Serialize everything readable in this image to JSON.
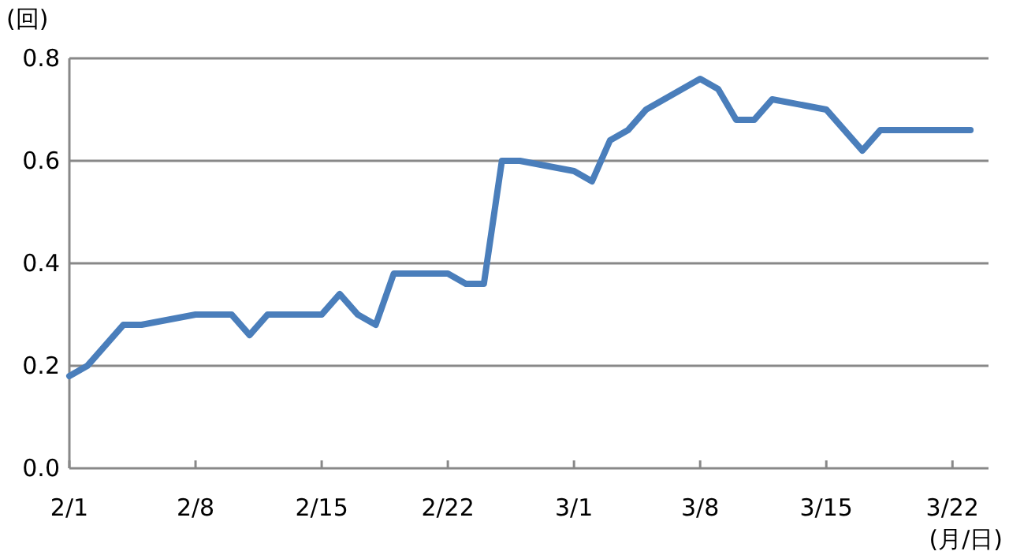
{
  "chart_data": {
    "type": "line",
    "ylabel": "(回)",
    "xlabel": "(月/日)",
    "color": "#4a7ebb",
    "grid": "y",
    "marker": "none",
    "line_style": "solid",
    "x": [
      "--02-01",
      "--02-02",
      "--02-03",
      "--02-04",
      "--02-05",
      "--02-08",
      "--02-10",
      "--02-11",
      "--02-12",
      "--02-15",
      "--02-16",
      "--02-17",
      "--02-18",
      "--02-19",
      "--02-22",
      "--02-23",
      "--02-24",
      "--02-25",
      "--02-26",
      "--03-01",
      "--03-02",
      "--03-03",
      "--03-04",
      "--03-05",
      "--03-08",
      "--03-09",
      "--03-10",
      "--03-11",
      "--03-12",
      "--03-15",
      "--03-17",
      "--03-18",
      "--03-23"
    ],
    "values": [
      0.18,
      0.2,
      0.24,
      0.28,
      0.28,
      0.3,
      0.3,
      0.26,
      0.3,
      0.3,
      0.34,
      0.3,
      0.28,
      0.38,
      0.38,
      0.36,
      0.36,
      0.6,
      0.6,
      0.58,
      0.56,
      0.64,
      0.66,
      0.7,
      0.76,
      0.74,
      0.68,
      0.68,
      0.72,
      0.7,
      0.62,
      0.66,
      0.66
    ],
    "xlim": [
      "--02-01",
      "--03-24"
    ],
    "ylim": [
      0,
      0.8
    ],
    "xticks": [
      {
        "value": "--02-01",
        "label": "2/1"
      },
      {
        "value": "--02-08",
        "label": "2/8"
      },
      {
        "value": "--02-15",
        "label": "2/15"
      },
      {
        "value": "--02-22",
        "label": "2/22"
      },
      {
        "value": "--03-01",
        "label": "3/1"
      },
      {
        "value": "--03-08",
        "label": "3/8"
      },
      {
        "value": "--03-15",
        "label": "3/15"
      },
      {
        "value": "--03-22",
        "label": "3/22"
      }
    ],
    "yticks": [
      {
        "value": 0,
        "label": "0.0"
      },
      0.2,
      0.4,
      0.6,
      0.8
    ]
  }
}
